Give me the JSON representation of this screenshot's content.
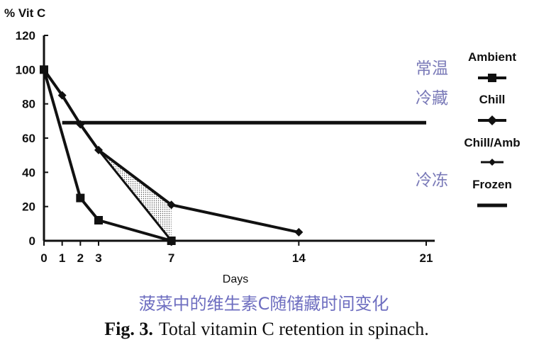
{
  "chart_data": {
    "type": "line",
    "ylabel": "% Vit C",
    "xlabel": "Days",
    "xlim": [
      0,
      21
    ],
    "ylim": [
      0,
      120
    ],
    "x_ticks": [
      0,
      1,
      2,
      3,
      7,
      14,
      21
    ],
    "y_ticks": [
      0,
      20,
      40,
      60,
      80,
      100,
      120
    ],
    "series": [
      {
        "name": "Ambient",
        "marker": "square",
        "x": [
          0,
          2,
          3,
          7
        ],
        "y": [
          100,
          25,
          12,
          0
        ]
      },
      {
        "name": "Chill",
        "marker": "diamond",
        "x": [
          0,
          1,
          2,
          3,
          7,
          14
        ],
        "y": [
          100,
          85,
          68,
          53,
          21,
          5
        ]
      },
      {
        "name": "Chill/Amb",
        "marker": "small-diamond",
        "x": [
          0,
          1,
          2,
          3,
          7
        ],
        "y": [
          100,
          85,
          68,
          53,
          0
        ]
      },
      {
        "name": "Frozen",
        "marker": "none",
        "x": [
          1,
          21
        ],
        "y": [
          69,
          69
        ]
      }
    ],
    "shaded_region": {
      "x": [
        3,
        7,
        7
      ],
      "y": [
        53,
        21,
        0
      ],
      "fill": "dotted"
    },
    "legend_position": "right",
    "legend_annotations": {
      "Ambient": "常温",
      "Chill": "冷藏",
      "Frozen": "冷冻"
    },
    "grid": false
  },
  "subtitle": "菠菜中的维生素C随储藏时间变化",
  "caption": {
    "label": "Fig. 3.",
    "text": "Total vitamin C retention in spinach."
  },
  "colors": {
    "line": "#111111",
    "annotation": "#7a7ab8"
  }
}
